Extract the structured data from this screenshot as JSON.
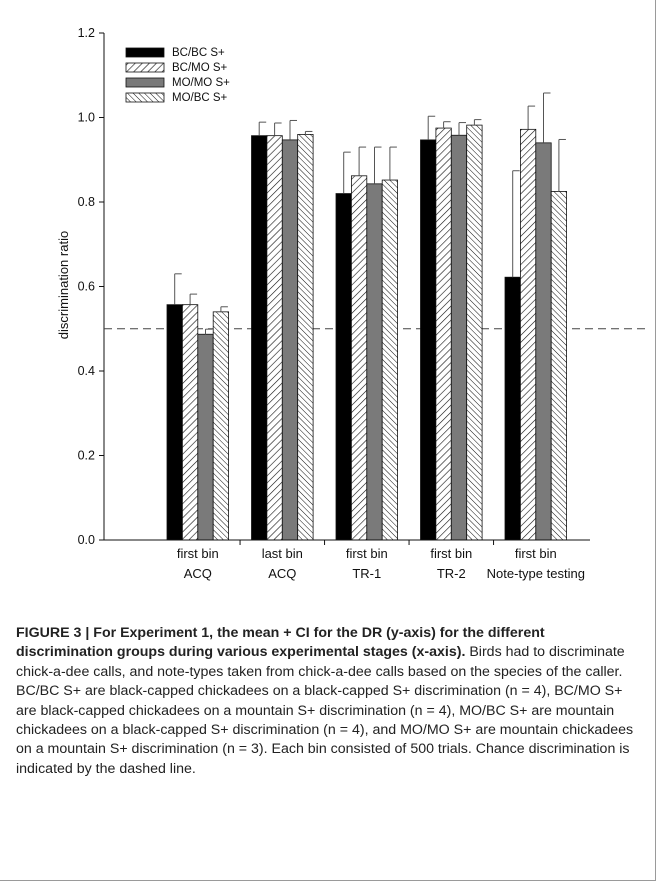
{
  "chart_data": {
    "type": "bar",
    "title": "",
    "xlabel": "",
    "ylabel": "discrimination ratio",
    "ylim": [
      0.0,
      1.2
    ],
    "yticks": [
      "0.0",
      "0.2",
      "0.4",
      "0.6",
      "0.8",
      "1.0",
      "1.2"
    ],
    "reference_line": {
      "y": 0.5,
      "style": "dashed"
    },
    "legend_position": "top-left",
    "grid": false,
    "categories": [
      {
        "line1": "first bin",
        "line2": "ACQ"
      },
      {
        "line1": "last bin",
        "line2": "ACQ"
      },
      {
        "line1": "first bin",
        "line2": "TR-1"
      },
      {
        "line1": "first bin",
        "line2": "TR-2"
      },
      {
        "line1": "first bin",
        "line2": "Note-type testing"
      }
    ],
    "series": [
      {
        "name": "BC/BC S+",
        "fill": "solid-black",
        "color": "#000000",
        "values": [
          0.557,
          0.957,
          0.82,
          0.947,
          0.622
        ],
        "ci": [
          0.073,
          0.032,
          0.098,
          0.056,
          0.252
        ]
      },
      {
        "name": "BC/MO S+",
        "fill": "diagonal-hatch-forward",
        "color": "#111111",
        "values": [
          0.557,
          0.957,
          0.862,
          0.975,
          0.972
        ],
        "ci": [
          0.025,
          0.03,
          0.068,
          0.015,
          0.055
        ]
      },
      {
        "name": "MO/MO S+",
        "fill": "solid-gray",
        "color": "#7a7a7a",
        "values": [
          0.487,
          0.947,
          0.843,
          0.958,
          0.94
        ],
        "ci": [
          0.012,
          0.046,
          0.087,
          0.03,
          0.118
        ]
      },
      {
        "name": "MO/BC S+",
        "fill": "diagonal-hatch-back",
        "color": "#111111",
        "values": [
          0.54,
          0.96,
          0.852,
          0.982,
          0.825
        ],
        "ci": [
          0.012,
          0.007,
          0.078,
          0.013,
          0.123
        ]
      }
    ]
  },
  "caption": {
    "heading": "FIGURE 3 | For Experiment 1, the mean + CI for the DR (y-axis) for the different discrimination groups during various experimental stages (x-axis).",
    "body": "Birds had to discriminate chick-a-dee calls, and note-types taken from chick-a-dee calls based on the species of the caller. BC/BC S+ are black-capped chickadees on a black-capped S+ discrimination (n = 4), BC/MO S+ are black-capped chickadees on a mountain S+ discrimination (n = 4), MO/BC S+ are mountain chickadees on a black-capped S+ discrimination (n = 4), and MO/MO S+ are mountain chickadees on a mountain S+ discrimination (n = 3). Each bin consisted of 500 trials. Chance discrimination is indicated by the dashed line."
  }
}
